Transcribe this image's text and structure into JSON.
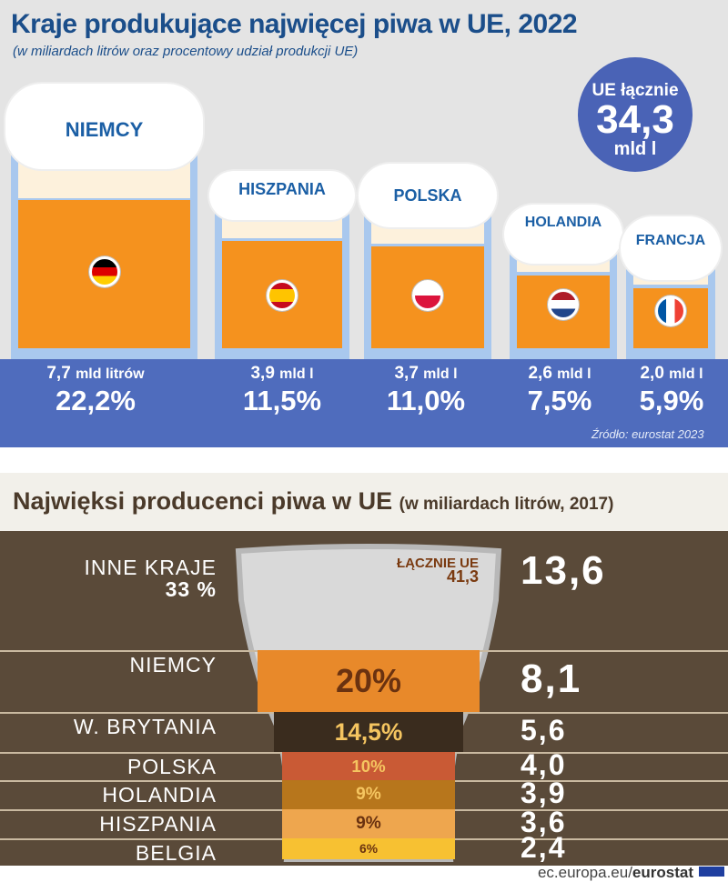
{
  "top": {
    "title": "Kraje produkujące najwięcej piwa w UE, 2022",
    "subtitle": "(w miliardach litrów oraz procentowy udział produkcji UE)",
    "total": {
      "label": "UE łącznie",
      "value": "34,3",
      "unit": "mld l"
    },
    "countries": [
      {
        "name": "NIEMCY",
        "value": "7,7",
        "unit": "mld litrów",
        "share": "22,2%",
        "flag": [
          "#000000",
          "#dd0000",
          "#ffce00"
        ]
      },
      {
        "name": "HISZPANIA",
        "value": "3,9",
        "unit": "mld l",
        "share": "11,5%",
        "flag": [
          "#c60b1e",
          "#ffc400",
          "#c60b1e"
        ]
      },
      {
        "name": "POLSKA",
        "value": "3,7",
        "unit": "mld l",
        "share": "11,0%",
        "flag": [
          "#ffffff",
          "#dc143c"
        ]
      },
      {
        "name": "HOLANDIA",
        "value": "2,6",
        "unit": "mld l",
        "share": "7,5%",
        "flag": [
          "#ae1c28",
          "#ffffff",
          "#21468b"
        ]
      },
      {
        "name": "FRANCJA",
        "value": "2,0",
        "unit": "mld l",
        "share": "5,9%",
        "flag": [
          "#0055a4",
          "#ffffff",
          "#ef4135"
        ]
      }
    ],
    "source": "Źródło: eurostat 2023"
  },
  "bottom": {
    "title": "Najwięksi producenci piwa w UE",
    "title_note": "(w miliardach litrów, 2017)",
    "total_label": "ŁĄCZNIE UE",
    "total_value": "41,3",
    "rows": [
      {
        "label": "INNE KRAJE",
        "label2": "33 %",
        "share": "",
        "value": "13,6"
      },
      {
        "label": "NIEMCY",
        "share": "20%",
        "value": "8,1",
        "color": "#e8892a"
      },
      {
        "label": "W. BRYTANIA",
        "share": "14,5%",
        "value": "5,6",
        "color": "#3a2c1e"
      },
      {
        "label": "POLSKA",
        "share": "10%",
        "value": "4,0",
        "color": "#c95a35"
      },
      {
        "label": "HOLANDIA",
        "share": "9%",
        "value": "3,9",
        "color": "#b7761c"
      },
      {
        "label": "HISZPANIA",
        "share": "9%",
        "value": "3,6",
        "color": "#eea64e"
      },
      {
        "label": "BELGIA",
        "share": "6%",
        "value": "2,4",
        "color": "#f7c132"
      }
    ],
    "footer_site": "ec.europa.eu/",
    "footer_brand": "eurostat"
  },
  "chart_data": [
    {
      "type": "bar",
      "title": "Kraje produkujące najwięcej piwa w UE, 2022",
      "categories": [
        "NIEMCY",
        "HISZPANIA",
        "POLSKA",
        "HOLANDIA",
        "FRANCJA"
      ],
      "values": [
        7.7,
        3.9,
        3.7,
        2.6,
        2.0
      ],
      "shares_percent": [
        22.2,
        11.5,
        11.0,
        7.5,
        5.9
      ],
      "total": 34.3
    },
    {
      "type": "bar",
      "title": "Największi producenci piwa w UE (w miliardach litrów, 2017)",
      "categories": [
        "INNE KRAJE",
        "NIEMCY",
        "W. BRYTANIA",
        "POLSKA",
        "HOLANDIA",
        "HISZPANIA",
        "BELGIA"
      ],
      "values": [
        13.6,
        8.1,
        5.6,
        4.0,
        3.9,
        3.6,
        2.4
      ],
      "shares_percent": [
        33,
        20,
        14.5,
        10,
        9,
        9,
        6
      ],
      "total": 41.3
    }
  ]
}
